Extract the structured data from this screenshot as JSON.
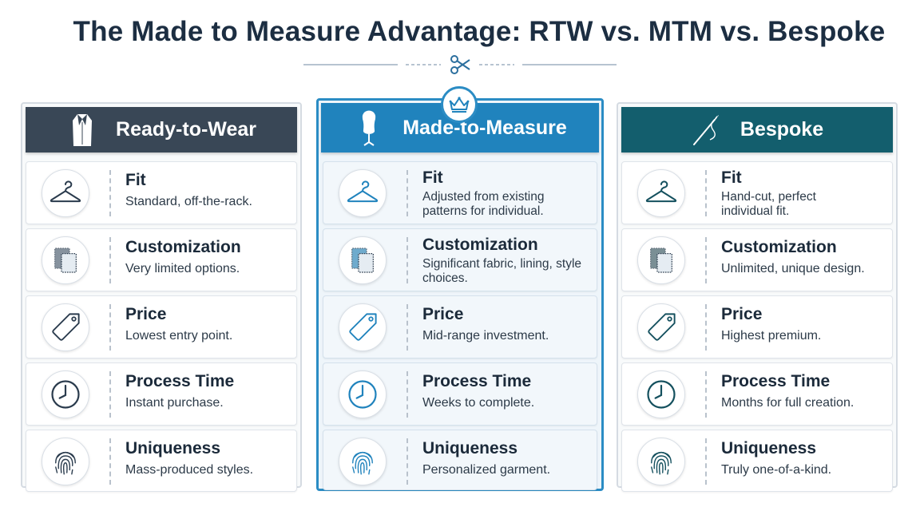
{
  "title": "The Made to Measure Advantage: RTW vs. MTM vs. Bespoke",
  "colors": {
    "rtw_header": "#394756",
    "mtm_header": "#2083bd",
    "bespoke_header": "#135e6d",
    "mtm_accent": "#2b8cc4",
    "title": "#1c2e42"
  },
  "columns": [
    {
      "key": "rtw",
      "header": "Ready-to-Wear",
      "header_icon": "tuxedo-icon",
      "rows": [
        {
          "icon": "hanger-icon",
          "title": "Fit",
          "desc": "Standard, off-the-rack."
        },
        {
          "icon": "fabric-swatch-icon",
          "title": "Customization",
          "desc": "Very limited options."
        },
        {
          "icon": "price-tag-icon",
          "title": "Price",
          "desc": "Lowest entry point."
        },
        {
          "icon": "clock-icon",
          "title": "Process Time",
          "desc": "Instant purchase."
        },
        {
          "icon": "fingerprint-icon",
          "title": "Uniqueness",
          "desc": "Mass-produced styles."
        }
      ]
    },
    {
      "key": "mtm",
      "header": "Made-to-Measure",
      "header_icon": "dress-form-icon",
      "badge_icon": "crown-icon",
      "rows": [
        {
          "icon": "hanger-icon",
          "title": "Fit",
          "desc": "Adjusted from existing patterns for individual."
        },
        {
          "icon": "fabric-swatch-icon",
          "title": "Customization",
          "desc": "Significant fabric, lining, style choices."
        },
        {
          "icon": "price-tag-icon",
          "title": "Price",
          "desc": "Mid-range investment."
        },
        {
          "icon": "clock-icon",
          "title": "Process Time",
          "desc": "Weeks to complete."
        },
        {
          "icon": "fingerprint-icon",
          "title": "Uniqueness",
          "desc": "Personalized garment."
        }
      ]
    },
    {
      "key": "bespoke",
      "header": "Bespoke",
      "header_icon": "needle-thread-icon",
      "rows": [
        {
          "icon": "hanger-icon",
          "title": "Fit",
          "desc": "Hand-cut, perfect individual fit."
        },
        {
          "icon": "fabric-swatch-icon",
          "title": "Customization",
          "desc": "Unlimited, unique design."
        },
        {
          "icon": "price-tag-icon",
          "title": "Price",
          "desc": "Highest premium."
        },
        {
          "icon": "clock-icon",
          "title": "Process Time",
          "desc": "Months for full creation."
        },
        {
          "icon": "fingerprint-icon",
          "title": "Uniqueness",
          "desc": "Truly one-of-a-kind."
        }
      ]
    }
  ]
}
